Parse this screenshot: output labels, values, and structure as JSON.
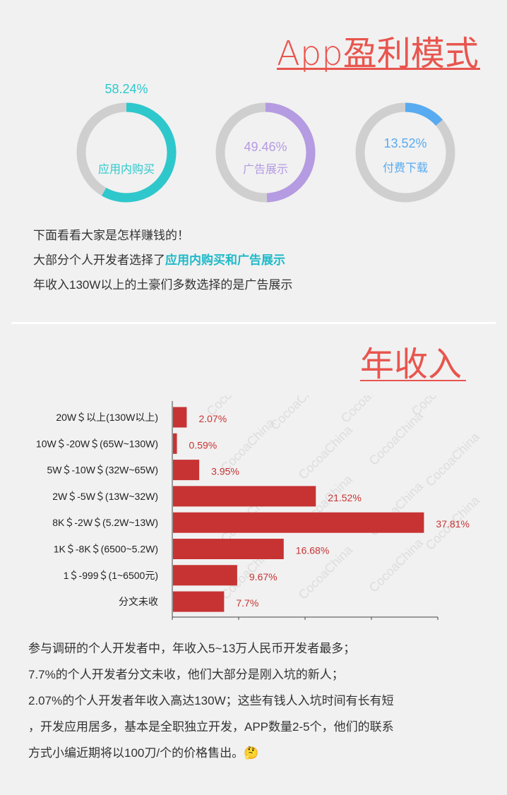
{
  "section1": {
    "title": "App盈利模式"
  },
  "donuts": [
    {
      "pct": "58.24%",
      "value": 58.24,
      "label": "应用内购买",
      "color": "#2ec8cc"
    },
    {
      "pct": "49.46%",
      "value": 49.46,
      "label": "广告展示",
      "color": "#b59be2"
    },
    {
      "pct": "13.52%",
      "value": 13.52,
      "label": "付费下载",
      "color": "#58abf0"
    }
  ],
  "intro": {
    "line1": "下面看看大家是怎样赚钱的！",
    "line2_prefix": "大部分个人开发者选择了",
    "line2_highlight": "应用内购买和广告展示",
    "line3": "年收入130W以上的土豪们多数选择的是广告展示"
  },
  "section2": {
    "title": "年收入"
  },
  "chart_data": {
    "type": "bar",
    "orientation": "horizontal",
    "categories": [
      "20W＄以上(130W以上)",
      "10W＄-20W＄(65W~130W)",
      "5W＄-10W＄(32W~65W)",
      "2W＄-5W＄(13W~32W)",
      "8K＄-2W＄(5.2W~13W)",
      "1K＄-8K＄(6500~5.2W)",
      "1＄-999＄(1~6500元)",
      "分文未收"
    ],
    "values": [
      2.07,
      0.59,
      3.95,
      21.52,
      37.81,
      16.68,
      9.67,
      7.7
    ],
    "value_labels": [
      "2.07%",
      "0.59%",
      "3.95%",
      "21.52%",
      "37.81%",
      "16.68%",
      "9.67%",
      "7.7%"
    ],
    "xlim": [
      0,
      40
    ],
    "bar_color": "#c73333",
    "label_color": "#c73333"
  },
  "watermark": "CocoaChina",
  "notes": [
    "参与调研的个人开发者中，年收入5~13万人民币开发者最多；",
    "7.7%的个人开发者分文未收，他们大部分是刚入坑的新人；",
    "2.07%的个人开发者年收入高达130W；这些有钱人入坑时间有长有短",
    "，开发应用居多，基本是全职独立开发，APP数量2-5个，他们的联系",
    "方式小编近期将以100刀/个的价格售出。🤔"
  ]
}
